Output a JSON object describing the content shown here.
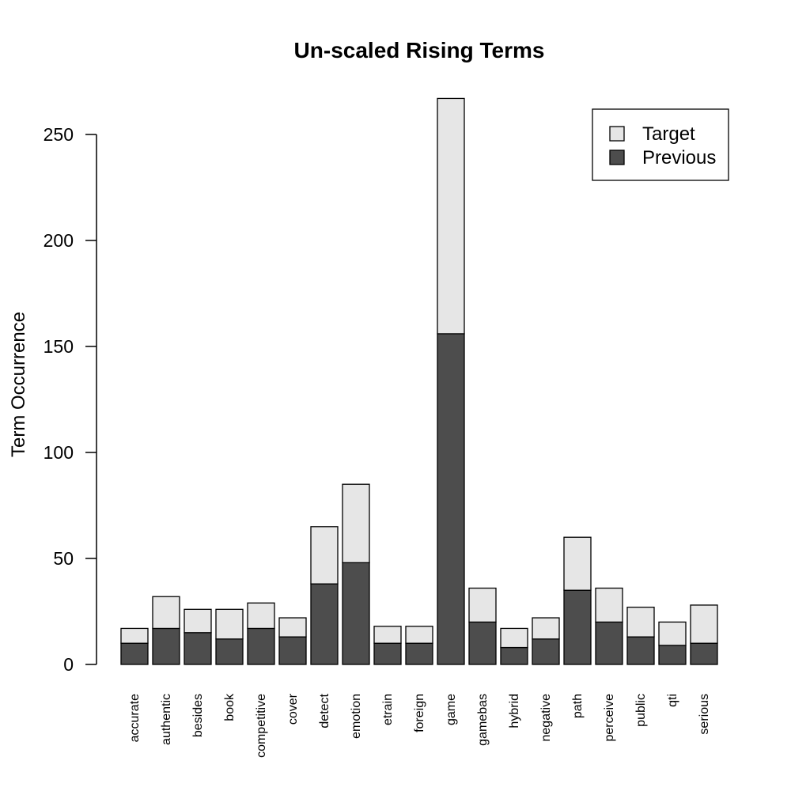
{
  "chart_data": {
    "type": "bar",
    "stacked": true,
    "title": "Un-scaled Rising Terms",
    "xlabel": "",
    "ylabel": "Term Occurrence",
    "ylim": [
      0,
      250
    ],
    "yticks": [
      0,
      50,
      100,
      150,
      200,
      250
    ],
    "grid": false,
    "legend_position": "top-right",
    "categories": [
      "accurate",
      "authentic",
      "besides",
      "book",
      "competitive",
      "cover",
      "detect",
      "emotion",
      "etrain",
      "foreign",
      "game",
      "gamebas",
      "hybrid",
      "negative",
      "path",
      "perceive",
      "public",
      "qti",
      "serious"
    ],
    "series": [
      {
        "name": "Previous",
        "color": "#4d4d4d",
        "values": [
          10,
          17,
          15,
          12,
          17,
          13,
          38,
          48,
          10,
          10,
          156,
          20,
          8,
          12,
          35,
          20,
          13,
          9,
          10
        ]
      },
      {
        "name": "Target",
        "color": "#e6e6e6",
        "values": [
          7,
          15,
          11,
          14,
          12,
          9,
          27,
          37,
          8,
          8,
          111,
          16,
          9,
          10,
          25,
          16,
          14,
          11,
          18
        ]
      }
    ],
    "legend_order": [
      "Target",
      "Previous"
    ]
  }
}
